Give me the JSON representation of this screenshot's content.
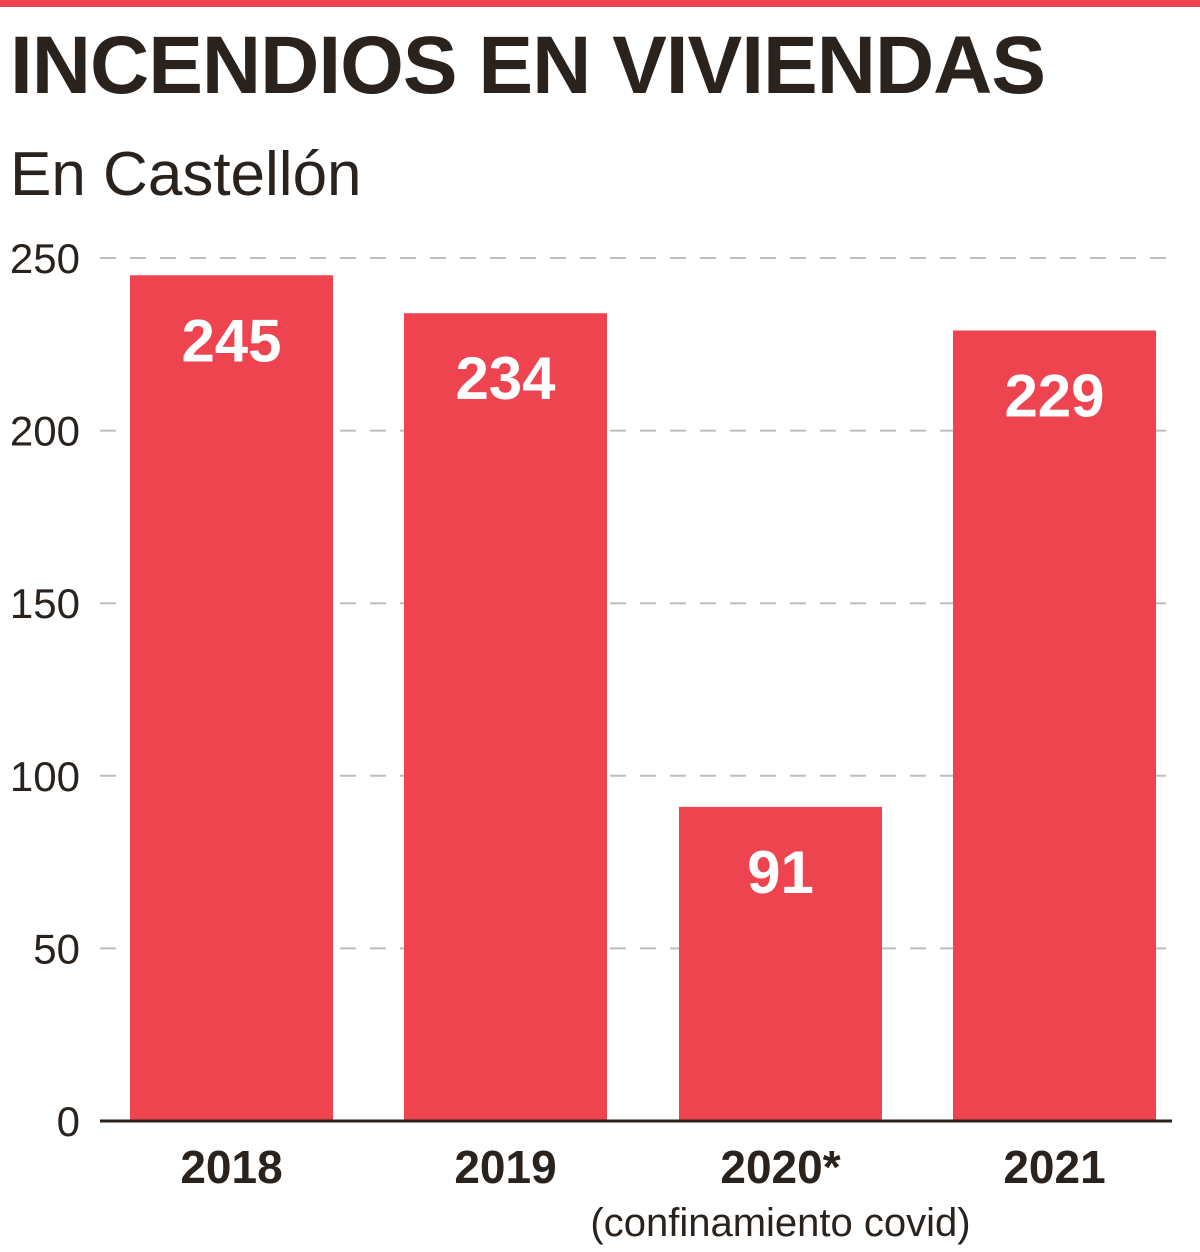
{
  "header": {
    "title": "INCENDIOS EN VIVIENDAS",
    "subtitle": "En Castellón"
  },
  "colors": {
    "accent": "#ee4450",
    "text": "#2a221d",
    "grid": "#bdbdbd"
  },
  "chart_data": {
    "type": "bar",
    "title": "INCENDIOS EN VIVIENDAS",
    "subtitle": "En Castellón",
    "categories": [
      "2018",
      "2019",
      "2020*",
      "2021"
    ],
    "category_notes": [
      "",
      "",
      "(confinamiento covid)",
      ""
    ],
    "values": [
      245,
      234,
      91,
      229
    ],
    "value_labels": [
      "245",
      "234",
      "91",
      "229"
    ],
    "ylim": [
      0,
      250
    ],
    "yticks": [
      0,
      50,
      100,
      150,
      200,
      250
    ],
    "ytick_labels": [
      "0",
      "50",
      "100",
      "150",
      "200",
      "250"
    ],
    "xlabel": "",
    "ylabel": "",
    "grid": true,
    "legend": "none"
  }
}
